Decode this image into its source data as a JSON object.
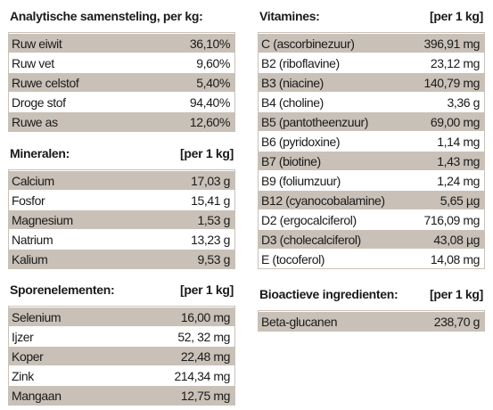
{
  "analytisch": {
    "title": "Analytische samensteling, per kg:",
    "rows": [
      {
        "label": "Ruw eiwit",
        "value": "36,10%"
      },
      {
        "label": "Ruw vet",
        "value": "9,60%"
      },
      {
        "label": "Ruwe celstof",
        "value": "5,40%"
      },
      {
        "label": "Droge stof",
        "value": "94,40%"
      },
      {
        "label": "Ruwe as",
        "value": "12,60%"
      }
    ]
  },
  "mineralen": {
    "title": "Mineralen:",
    "unit": "[per 1 kg]",
    "rows": [
      {
        "label": "Calcium",
        "value": "17,03 g"
      },
      {
        "label": "Fosfor",
        "value": "15,41 g"
      },
      {
        "label": "Magnesium",
        "value": "1,53 g"
      },
      {
        "label": "Natrium",
        "value": "13,23 g"
      },
      {
        "label": "Kalium",
        "value": "9,53 g"
      }
    ]
  },
  "sporenelementen": {
    "title": "Sporenelementen:",
    "unit": "[per 1 kg]",
    "rows": [
      {
        "label": "Selenium",
        "value": "16,00 mg"
      },
      {
        "label": "Ijzer",
        "value": "52, 32 mg"
      },
      {
        "label": "Koper",
        "value": "22,48 mg"
      },
      {
        "label": "Zink",
        "value": "214,34 mg"
      },
      {
        "label": "Mangaan",
        "value": "12,75 mg"
      }
    ]
  },
  "vitamines": {
    "title": "Vitamines:",
    "unit": "[per 1 kg]",
    "rows": [
      {
        "label": "C (ascorbinezuur)",
        "value": "396,91 mg"
      },
      {
        "label": "B2 (riboflavine)",
        "value": "23,12 mg"
      },
      {
        "label": "B3 (niacine)",
        "value": "140,79 mg"
      },
      {
        "label": "B4 (choline)",
        "value": "3,36 g"
      },
      {
        "label": "B5 (pantotheenzuur)",
        "value": "69,00 mg"
      },
      {
        "label": "B6 (pyridoxine)",
        "value": "1,14 mg"
      },
      {
        "label": "B7 (biotine)",
        "value": "1,43 mg"
      },
      {
        "label": "B9 (foliumzuur)",
        "value": "1,24 mg"
      },
      {
        "label": "B12 (cyanocobalamine)",
        "value": "5,65 µg"
      },
      {
        "label": "D2 (ergocalciferol)",
        "value": "716,09 mg"
      },
      {
        "label": "D3 (cholecalciferol)",
        "value": "43,08 µg"
      },
      {
        "label": "E (tocoferol)",
        "value": "14,08 mg"
      }
    ]
  },
  "bioactieve": {
    "title": "Bioactieve ingredienten:",
    "unit": "[per 1 kg]",
    "rows": [
      {
        "label": "Beta-glucanen",
        "value": "238,70 g"
      }
    ]
  }
}
